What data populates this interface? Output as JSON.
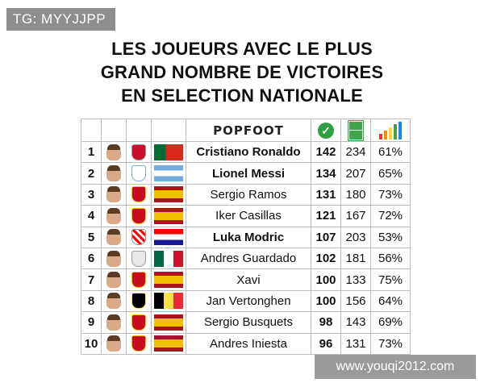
{
  "watermarks": {
    "top": "TG: MYYJJPP",
    "bottom": "www.youqi2012.com"
  },
  "title_lines": [
    "LES JOUEURS AVEC LE PLUS",
    "GRAND NOMBRE DE VICTOIRES",
    "EN SELECTION NATIONALE"
  ],
  "header": {
    "brand": "POPFOOT",
    "wins_icon": "checkmark-icon",
    "caps_icon": "football-pitch-icon",
    "pct_icon": "bar-chart-icon"
  },
  "colors": {
    "check_green": "#2e9f43",
    "pitch_green": "#3fa44a"
  },
  "players": [
    {
      "rank": "1",
      "name": "Cristiano Ronaldo",
      "bold": true,
      "wins": "142",
      "caps": "234",
      "pct": "61%",
      "country": "portugal"
    },
    {
      "rank": "2",
      "name": "Lionel Messi",
      "bold": true,
      "wins": "134",
      "caps": "207",
      "pct": "65%",
      "country": "argentina"
    },
    {
      "rank": "3",
      "name": "Sergio Ramos",
      "bold": false,
      "wins": "131",
      "caps": "180",
      "pct": "73%",
      "country": "spain"
    },
    {
      "rank": "4",
      "name": "Iker Casillas",
      "bold": false,
      "wins": "121",
      "caps": "167",
      "pct": "72%",
      "country": "spain"
    },
    {
      "rank": "5",
      "name": "Luka Modric",
      "bold": true,
      "wins": "107",
      "caps": "203",
      "pct": "53%",
      "country": "croatia"
    },
    {
      "rank": "6",
      "name": "Andres Guardado",
      "bold": false,
      "wins": "102",
      "caps": "181",
      "pct": "56%",
      "country": "mexico"
    },
    {
      "rank": "7",
      "name": "Xavi",
      "bold": false,
      "wins": "100",
      "caps": "133",
      "pct": "75%",
      "country": "spain"
    },
    {
      "rank": "8",
      "name": "Jan Vertonghen",
      "bold": false,
      "wins": "100",
      "caps": "156",
      "pct": "64%",
      "country": "belgium"
    },
    {
      "rank": "9",
      "name": "Sergio Busquets",
      "bold": false,
      "wins": "98",
      "caps": "143",
      "pct": "69%",
      "country": "spain"
    },
    {
      "rank": "10",
      "name": "Andres Iniesta",
      "bold": false,
      "wins": "96",
      "caps": "131",
      "pct": "73%",
      "country": "spain"
    }
  ]
}
